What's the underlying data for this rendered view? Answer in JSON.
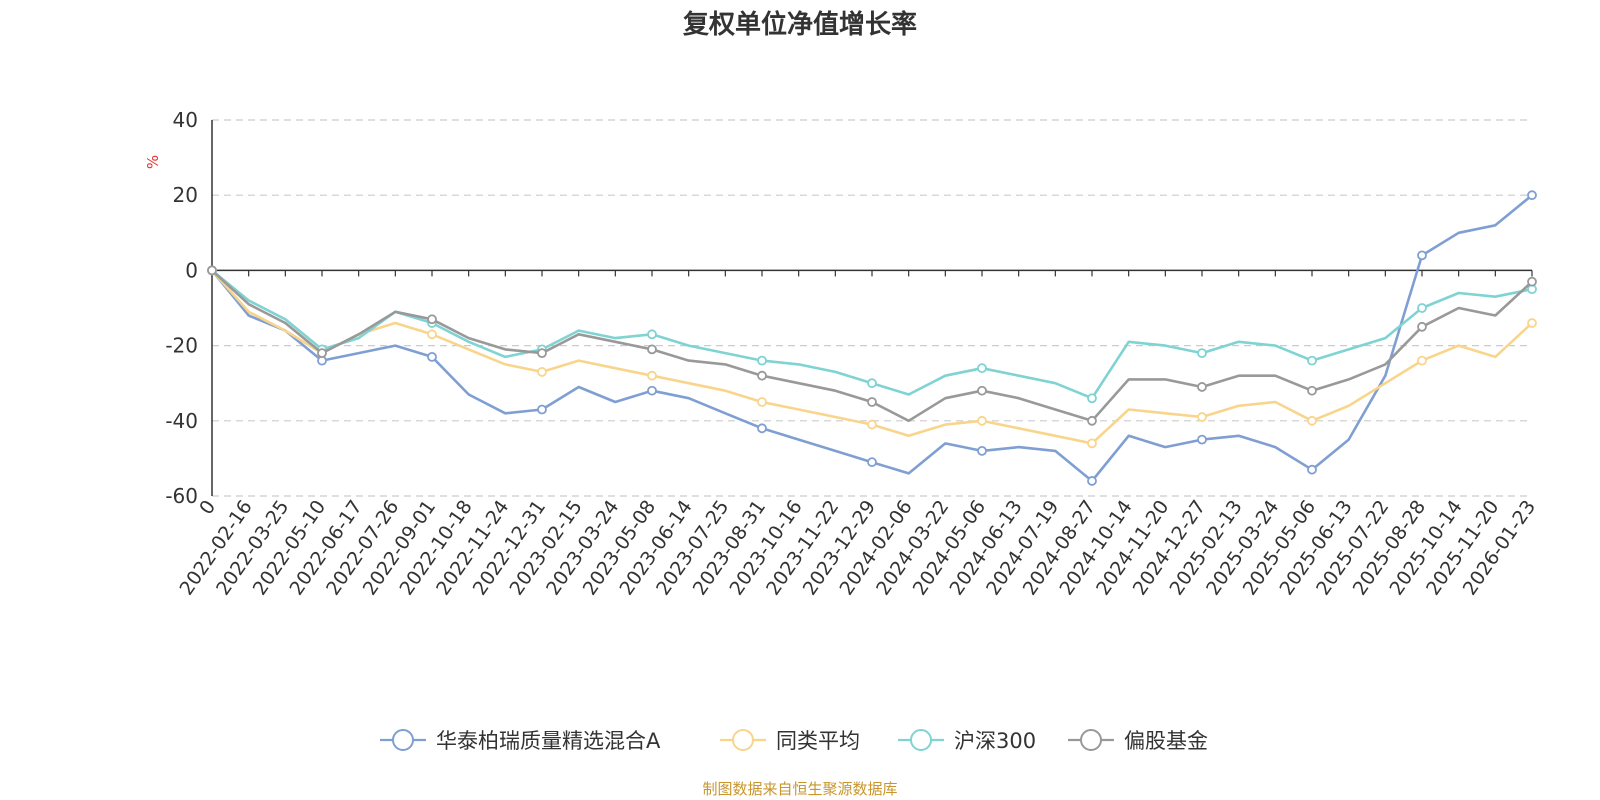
{
  "chart_data": {
    "type": "line",
    "title": "复权单位净值增长率",
    "ylabel": "%",
    "ylim": [
      -60,
      40
    ],
    "yticks": [
      "40",
      "20",
      "0",
      "-20",
      "-40",
      "-60"
    ],
    "grid": true,
    "legend_position": "bottom-center",
    "x_ticks": [
      "0",
      "2022-02-16",
      "2022-03-25",
      "2022-05-10",
      "2022-06-17",
      "2022-07-26",
      "2022-09-01",
      "2022-10-18",
      "2022-11-24",
      "2022-12-31",
      "2023-02-15",
      "2023-03-24",
      "2023-05-08",
      "2023-06-14",
      "2023-07-25",
      "2023-08-31",
      "2023-10-16",
      "2023-11-22",
      "2023-12-29",
      "2024-02-06",
      "2024-03-22",
      "2024-05-06",
      "2024-06-13",
      "2024-07-19",
      "2024-08-27",
      "2024-10-14",
      "2024-11-20",
      "2024-12-27",
      "2025-02-13",
      "2025-03-24",
      "2025-05-06",
      "2025-06-13",
      "2025-07-22",
      "2025-08-28",
      "2025-10-14",
      "2025-11-20",
      "2026-01-23"
    ],
    "series": [
      {
        "name": "华泰柏瑞质量精选混合A",
        "color": "#7f9fd3",
        "values": [
          0,
          -12,
          -16,
          -24,
          -22,
          -20,
          -23,
          -33,
          -38,
          -37,
          -31,
          -35,
          -32,
          -34,
          -38,
          -42,
          -45,
          -48,
          -51,
          -54,
          -46,
          -48,
          -47,
          -48,
          -56,
          -44,
          -47,
          -45,
          -44,
          -47,
          -53,
          -45,
          -28,
          4,
          10,
          12,
          20
        ]
      },
      {
        "name": "同类平均",
        "color": "#f9d58c",
        "values": [
          0,
          -11,
          -16,
          -22,
          -17,
          -14,
          -17,
          -21,
          -25,
          -27,
          -24,
          -26,
          -28,
          -30,
          -32,
          -35,
          -37,
          -39,
          -41,
          -44,
          -41,
          -40,
          -42,
          -44,
          -46,
          -37,
          -38,
          -39,
          -36,
          -35,
          -40,
          -36,
          -30,
          -24,
          -20,
          -23,
          -14
        ]
      },
      {
        "name": "沪深300",
        "color": "#7fd3d3",
        "values": [
          0,
          -8,
          -13,
          -21,
          -18,
          -11,
          -14,
          -19,
          -23,
          -21,
          -16,
          -18,
          -17,
          -20,
          -22,
          -24,
          -25,
          -27,
          -30,
          -33,
          -28,
          -26,
          -28,
          -30,
          -34,
          -19,
          -20,
          -22,
          -19,
          -20,
          -24,
          -21,
          -18,
          -10,
          -6,
          -7,
          -5
        ]
      },
      {
        "name": "偏股基金",
        "color": "#999999",
        "values": [
          0,
          -9,
          -14,
          -22,
          -17,
          -11,
          -13,
          -18,
          -21,
          -22,
          -17,
          -19,
          -21,
          -24,
          -25,
          -28,
          -30,
          -32,
          -35,
          -40,
          -34,
          -32,
          -34,
          -37,
          -40,
          -29,
          -29,
          -31,
          -28,
          -28,
          -32,
          -29,
          -25,
          -15,
          -10,
          -12,
          -3
        ]
      }
    ]
  },
  "source_note": "制图数据来自恒生聚源数据库"
}
